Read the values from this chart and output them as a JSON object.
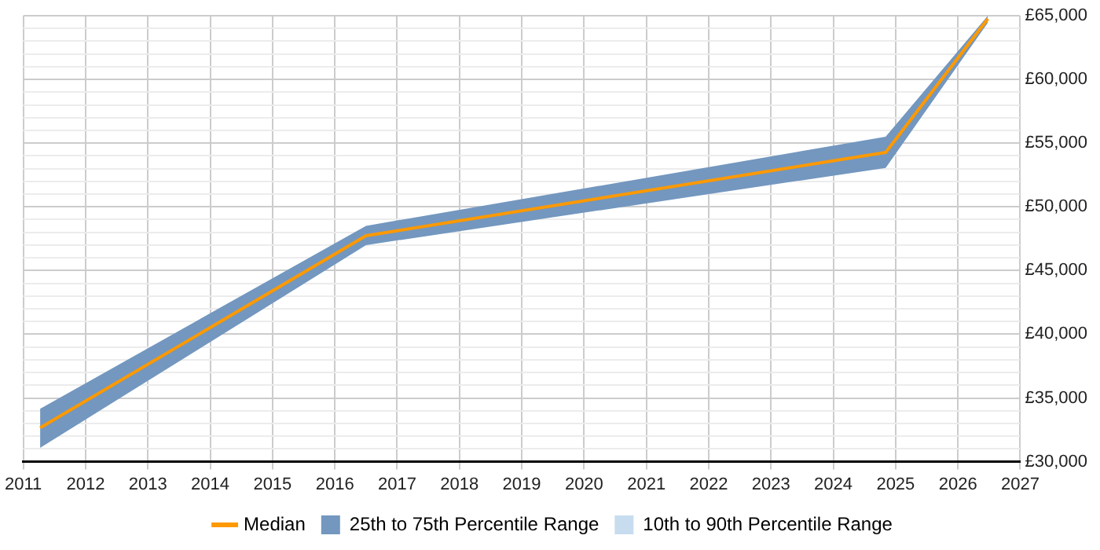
{
  "chart_data": {
    "type": "line",
    "x": [
      2011.27,
      2016.5,
      2024.84,
      2026.48
    ],
    "series": [
      {
        "name": "Median",
        "type": "line",
        "color": "#ff9900",
        "values": [
          32660,
          47730,
          54270,
          64750
        ]
      },
      {
        "name": "25th to 75th Percentile Range",
        "type": "line",
        "color": "#7397bf",
        "values": [
          null,
          null,
          null,
          null
        ],
        "lower": [
          31090,
          47000,
          53060,
          64450
        ],
        "upper": [
          34150,
          48510,
          55500,
          65000
        ]
      },
      {
        "name": "10th to 90th Percentile Range",
        "type": "line",
        "color": "#c8dcef",
        "values": [
          null,
          null,
          null,
          null
        ],
        "lower": [
          null,
          null,
          null,
          null
        ],
        "upper": [
          null,
          null,
          null,
          null
        ]
      }
    ],
    "xlim": [
      2011,
      2027
    ],
    "xticks": [
      2011,
      2012,
      2013,
      2014,
      2015,
      2016,
      2017,
      2018,
      2019,
      2020,
      2021,
      2022,
      2023,
      2024,
      2025,
      2026,
      2027
    ],
    "ylim": [
      30000,
      65000
    ],
    "yticks": [
      {
        "value": 30000,
        "label": "£30,000"
      },
      {
        "value": 31000,
        "label": null
      },
      {
        "value": 32000,
        "label": null
      },
      {
        "value": 33000,
        "label": null
      },
      {
        "value": 34000,
        "label": null
      },
      {
        "value": 35000,
        "label": "£35,000"
      },
      {
        "value": 36000,
        "label": null
      },
      {
        "value": 37000,
        "label": null
      },
      {
        "value": 38000,
        "label": null
      },
      {
        "value": 39000,
        "label": null
      },
      {
        "value": 40000,
        "label": "£40,000"
      },
      {
        "value": 41000,
        "label": null
      },
      {
        "value": 42000,
        "label": null
      },
      {
        "value": 43000,
        "label": null
      },
      {
        "value": 44000,
        "label": null
      },
      {
        "value": 45000,
        "label": "£45,000"
      },
      {
        "value": 46000,
        "label": null
      },
      {
        "value": 47000,
        "label": null
      },
      {
        "value": 48000,
        "label": null
      },
      {
        "value": 49000,
        "label": null
      },
      {
        "value": 50000,
        "label": "£50,000"
      },
      {
        "value": 51000,
        "label": null
      },
      {
        "value": 52000,
        "label": null
      },
      {
        "value": 53000,
        "label": null
      },
      {
        "value": 54000,
        "label": null
      },
      {
        "value": 55000,
        "label": "£55,000"
      },
      {
        "value": 56000,
        "label": null
      },
      {
        "value": 57000,
        "label": null
      },
      {
        "value": 58000,
        "label": null
      },
      {
        "value": 59000,
        "label": null
      },
      {
        "value": 60000,
        "label": "£60,000"
      },
      {
        "value": 61000,
        "label": null
      },
      {
        "value": 62000,
        "label": null
      },
      {
        "value": 63000,
        "label": null
      },
      {
        "value": 64000,
        "label": null
      },
      {
        "value": 65000,
        "label": "£65,000"
      }
    ],
    "grid": true,
    "legend": "bottom",
    "marker": "none"
  }
}
